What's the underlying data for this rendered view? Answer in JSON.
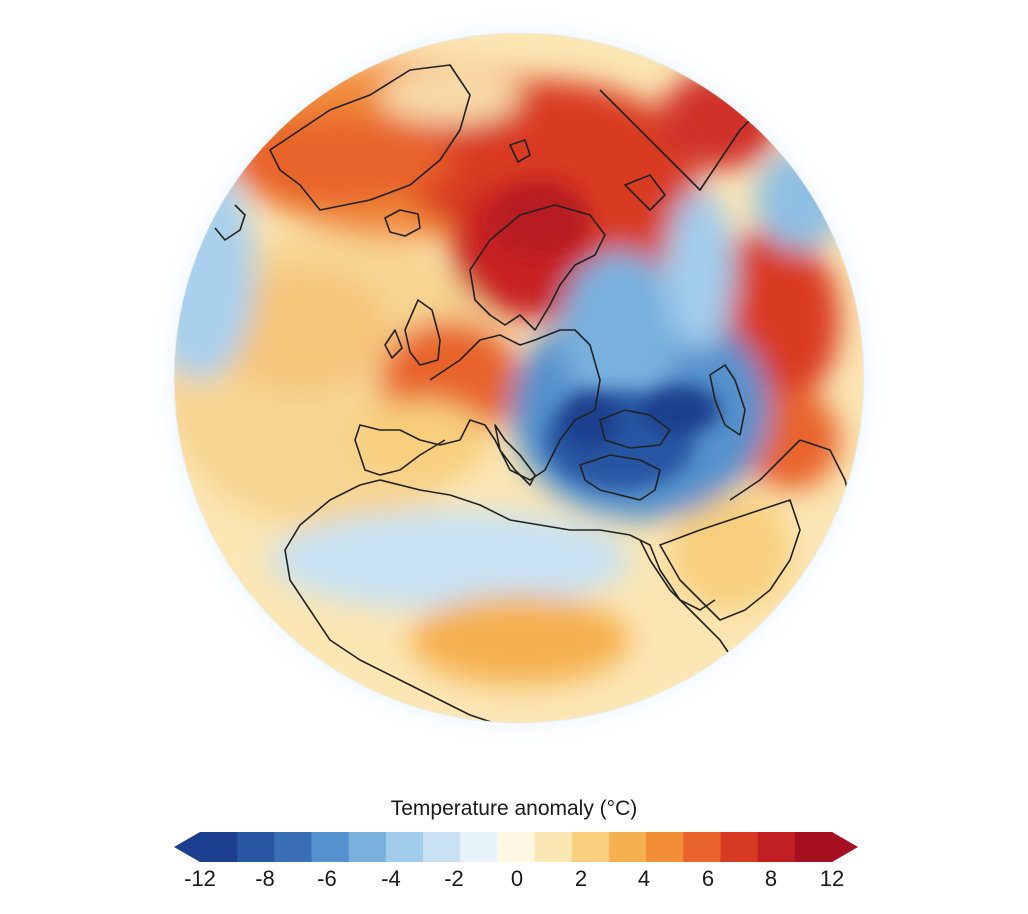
{
  "legend": {
    "title": "Temperature anomaly (°C)",
    "ticks": [
      "-12",
      "-8",
      "-6",
      "-4",
      "-2",
      "0",
      "2",
      "4",
      "6",
      "8",
      "12"
    ],
    "colors": [
      "#1b3f8e",
      "#2856a3",
      "#3a6fb8",
      "#5591cc",
      "#78b1de",
      "#a2cceb",
      "#c8e2f3",
      "#e7f3fa",
      "#fdf7e3",
      "#fbe7b3",
      "#f8cf7d",
      "#f5b14f",
      "#f18e36",
      "#e8642a",
      "#d93a24",
      "#c11f23",
      "#a50f1f"
    ]
  },
  "map": {
    "projection": "orthographic globe",
    "region": "Europe, North Atlantic, North Africa, Middle East",
    "anomalies": {
      "warm_high": "#d9302a",
      "cold_low": "#1f4e9a"
    }
  }
}
